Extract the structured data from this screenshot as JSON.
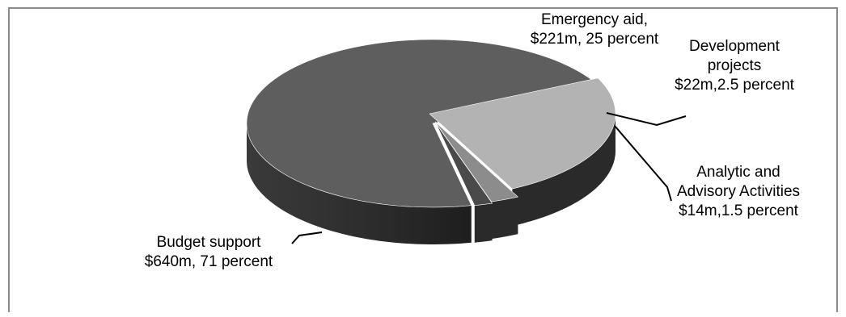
{
  "chart_data": {
    "type": "pie",
    "style": "3d-exploded-tilted",
    "title": "",
    "legend": "none",
    "slices": [
      {
        "name": "Budget support",
        "value": 640,
        "percent": 71,
        "label_lines": [
          "Budget  support",
          "$640m, 71 percent"
        ],
        "color": "#5e5e5e"
      },
      {
        "name": "Emergency aid",
        "value": 221,
        "percent": 25,
        "label_lines": [
          "Emergency aid,",
          "$221m, 25 percent"
        ],
        "color": "#b3b3b3"
      },
      {
        "name": "Development projects",
        "value": 22,
        "percent": 2.5,
        "label_lines": [
          "Development",
          "projects",
          "$22m,2.5 percent"
        ],
        "color": "#8c8c8c"
      },
      {
        "name": "Analytic and Advisory Activities",
        "value": 14,
        "percent": 1.5,
        "label_lines": [
          "Analytic and",
          "Advisory Activities",
          "$14m,1.5 percent"
        ],
        "color": "#4a4a4a"
      }
    ]
  }
}
